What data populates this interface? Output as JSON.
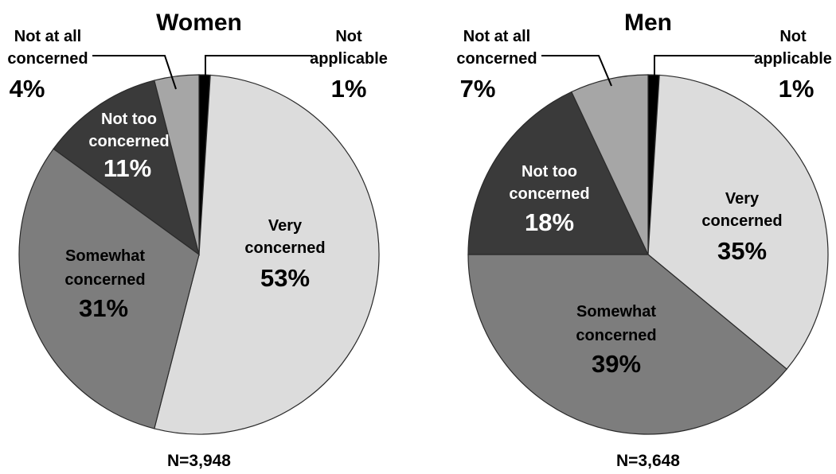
{
  "chart_data": [
    {
      "type": "pie",
      "title": "Women",
      "footnote": "N=3,948",
      "slices": [
        {
          "label_line1": "Not",
          "label_line2": "applicable",
          "pct_text": "1%",
          "value": 1,
          "color": "#000000"
        },
        {
          "label_line1": "Very",
          "label_line2": "concerned",
          "pct_text": "53%",
          "value": 53,
          "color": "#dcdcdc"
        },
        {
          "label_line1": "Somewhat",
          "label_line2": "concerned",
          "pct_text": "31%",
          "value": 31,
          "color": "#7d7d7d"
        },
        {
          "label_line1": "Not too",
          "label_line2": "concerned",
          "pct_text": "11%",
          "value": 11,
          "color": "#3a3a3a"
        },
        {
          "label_line1": "Not at all",
          "label_line2": "concerned",
          "pct_text": "4%",
          "value": 4,
          "color": "#a6a6a6"
        }
      ]
    },
    {
      "type": "pie",
      "title": "Men",
      "footnote": "N=3,648",
      "slices": [
        {
          "label_line1": "Not",
          "label_line2": "applicable",
          "pct_text": "1%",
          "value": 1,
          "color": "#000000"
        },
        {
          "label_line1": "Very",
          "label_line2": "concerned",
          "pct_text": "35%",
          "value": 35,
          "color": "#dcdcdc"
        },
        {
          "label_line1": "Somewhat",
          "label_line2": "concerned",
          "pct_text": "39%",
          "value": 39,
          "color": "#7d7d7d"
        },
        {
          "label_line1": "Not too",
          "label_line2": "concerned",
          "pct_text": "18%",
          "value": 18,
          "color": "#3a3a3a"
        },
        {
          "label_line1": "Not at all",
          "label_line2": "concerned",
          "pct_text": "7%",
          "value": 7,
          "color": "#a6a6a6"
        }
      ]
    }
  ]
}
